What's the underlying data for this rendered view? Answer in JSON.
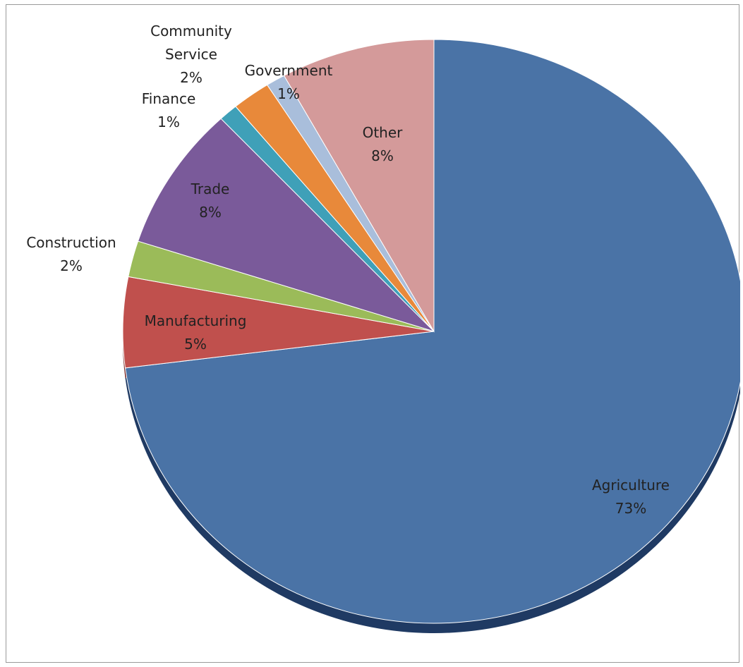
{
  "chart_data": {
    "type": "pie",
    "title": "",
    "slices": [
      {
        "label": "Agriculture",
        "pct_label": "73%",
        "value": 73,
        "color": "#4A73A6",
        "shadow": "#1F3A63"
      },
      {
        "label": "Manufacturing",
        "pct_label": "5%",
        "value": 5,
        "color": "#C0504D",
        "shadow": "#7A2A28"
      },
      {
        "label": "Construction",
        "pct_label": "2%",
        "value": 2,
        "color": "#9BBB59",
        "shadow": "#5E7A2C"
      },
      {
        "label": "Trade",
        "pct_label": "8%",
        "value": 8,
        "color": "#7A5A9A",
        "shadow": "#4A3466"
      },
      {
        "label": "Finance",
        "pct_label": "1%",
        "value": 1,
        "color": "#3FA0B8",
        "shadow": "#1E6070"
      },
      {
        "label": "Community Service",
        "pct_label": "2%",
        "value": 2,
        "color": "#E8893A",
        "shadow": "#9A5618"
      },
      {
        "label": "Government",
        "pct_label": "1%",
        "value": 1,
        "color": "#A9BEDB",
        "shadow": "#6A7F9C"
      },
      {
        "label": "Other",
        "pct_label": "8%",
        "value": 8,
        "color": "#D49A9A",
        "shadow": "#8E5A5A"
      }
    ]
  }
}
